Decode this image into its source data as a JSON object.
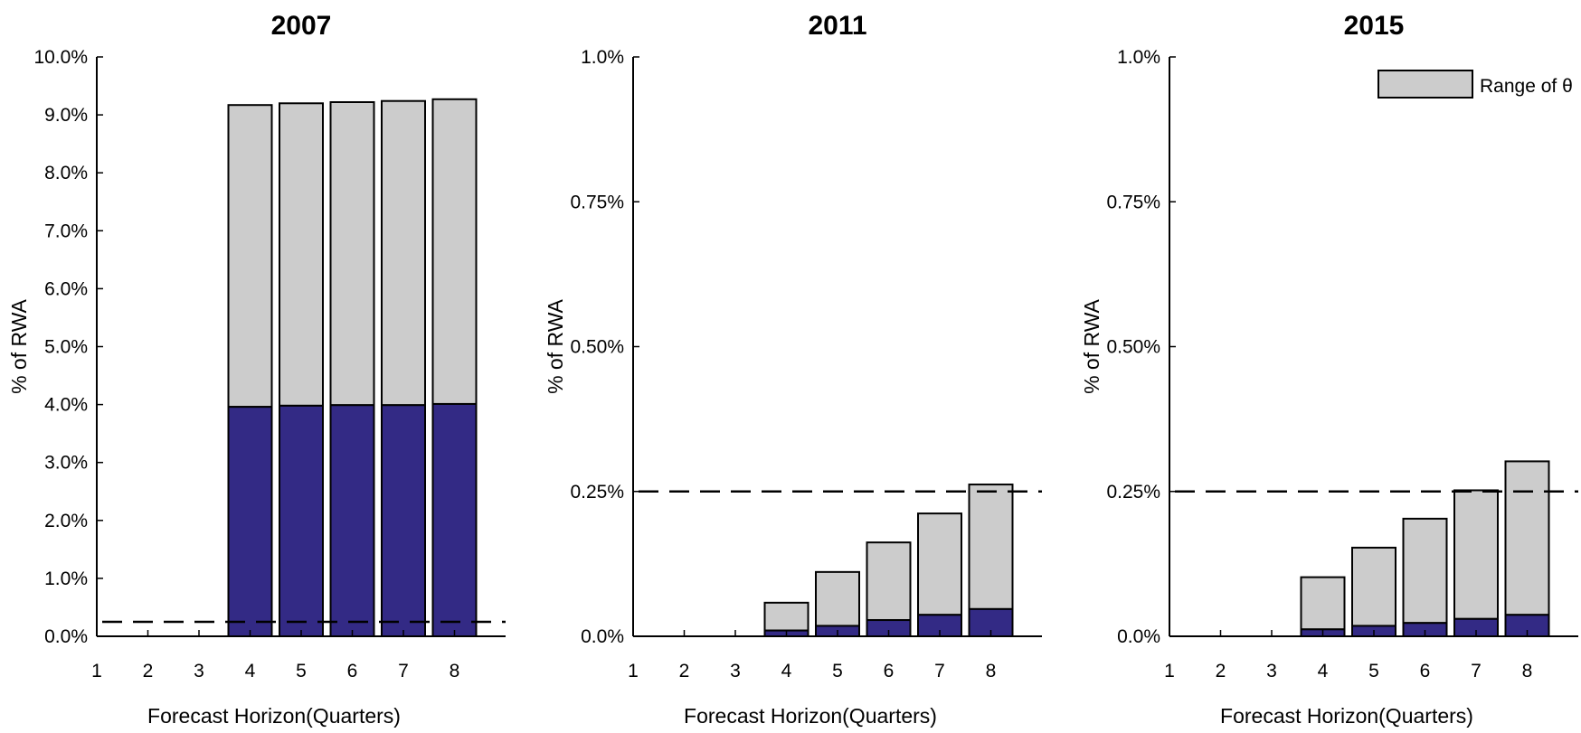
{
  "chart_data": [
    {
      "type": "bar",
      "stacked": true,
      "title": "2007",
      "xlabel": "Forecast Horizon(Quarters)",
      "ylabel": "% of RWA",
      "x_ticks": [
        "1",
        "2",
        "3",
        "4",
        "5",
        "6",
        "7",
        "8"
      ],
      "y_ticks": [
        {
          "value": 0.0,
          "label": "0.0%"
        },
        {
          "value": 1.0,
          "label": "1.0%"
        },
        {
          "value": 2.0,
          "label": "2.0%"
        },
        {
          "value": 3.0,
          "label": "3.0%"
        },
        {
          "value": 4.0,
          "label": "4.0%"
        },
        {
          "value": 5.0,
          "label": "5.0%"
        },
        {
          "value": 6.0,
          "label": "6.0%"
        },
        {
          "value": 7.0,
          "label": "7.0%"
        },
        {
          "value": 8.0,
          "label": "8.0%"
        },
        {
          "value": 9.0,
          "label": "9.0%"
        },
        {
          "value": 10.0,
          "label": "10.0%"
        }
      ],
      "ylim": [
        0,
        10.0
      ],
      "xlim": [
        1,
        9
      ],
      "x": [
        4,
        5,
        6,
        7,
        8
      ],
      "series": [
        {
          "color": "#332a85",
          "values": [
            3.96,
            3.98,
            3.99,
            3.99,
            4.01
          ]
        },
        {
          "name": "Range of θ",
          "color": "#cccccc",
          "top": [
            9.17,
            9.2,
            9.22,
            9.24,
            9.27
          ]
        }
      ],
      "threshold": 0.25,
      "grid": false
    },
    {
      "type": "bar",
      "stacked": true,
      "title": "2011",
      "xlabel": "Forecast Horizon(Quarters)",
      "ylabel": "% of RWA",
      "x_ticks": [
        "1",
        "2",
        "3",
        "4",
        "5",
        "6",
        "7",
        "8"
      ],
      "y_ticks": [
        {
          "value": 0.0,
          "label": "0.0%"
        },
        {
          "value": 0.25,
          "label": "0.25%"
        },
        {
          "value": 0.5,
          "label": "0.50%"
        },
        {
          "value": 0.75,
          "label": "0.75%"
        },
        {
          "value": 1.0,
          "label": "1.0%"
        }
      ],
      "ylim": [
        0,
        1.0
      ],
      "xlim": [
        1,
        9
      ],
      "x": [
        4,
        5,
        6,
        7,
        8
      ],
      "series": [
        {
          "color": "#332a85",
          "values": [
            0.01,
            0.018,
            0.028,
            0.037,
            0.047
          ]
        },
        {
          "name": "Range of θ",
          "color": "#cccccc",
          "top": [
            0.058,
            0.111,
            0.162,
            0.212,
            0.262
          ]
        }
      ],
      "threshold": 0.25,
      "grid": false
    },
    {
      "type": "bar",
      "stacked": true,
      "title": "2015",
      "xlabel": "Forecast Horizon(Quarters)",
      "ylabel": "% of RWA",
      "x_ticks": [
        "1",
        "2",
        "3",
        "4",
        "5",
        "6",
        "7",
        "8"
      ],
      "y_ticks": [
        {
          "value": 0.0,
          "label": "0.0%"
        },
        {
          "value": 0.25,
          "label": "0.25%"
        },
        {
          "value": 0.5,
          "label": "0.50%"
        },
        {
          "value": 0.75,
          "label": "0.75%"
        },
        {
          "value": 1.0,
          "label": "1.0%"
        }
      ],
      "ylim": [
        0,
        1.0
      ],
      "xlim": [
        1,
        9
      ],
      "x": [
        4,
        5,
        6,
        7,
        8
      ],
      "series": [
        {
          "color": "#332a85",
          "values": [
            0.012,
            0.018,
            0.023,
            0.03,
            0.037
          ]
        },
        {
          "name": "Range of θ",
          "color": "#cccccc",
          "top": [
            0.102,
            0.153,
            0.203,
            0.252,
            0.302
          ]
        }
      ],
      "threshold": 0.25,
      "grid": false,
      "legend": {
        "position": "top-right",
        "label": "Range of θ"
      }
    }
  ]
}
